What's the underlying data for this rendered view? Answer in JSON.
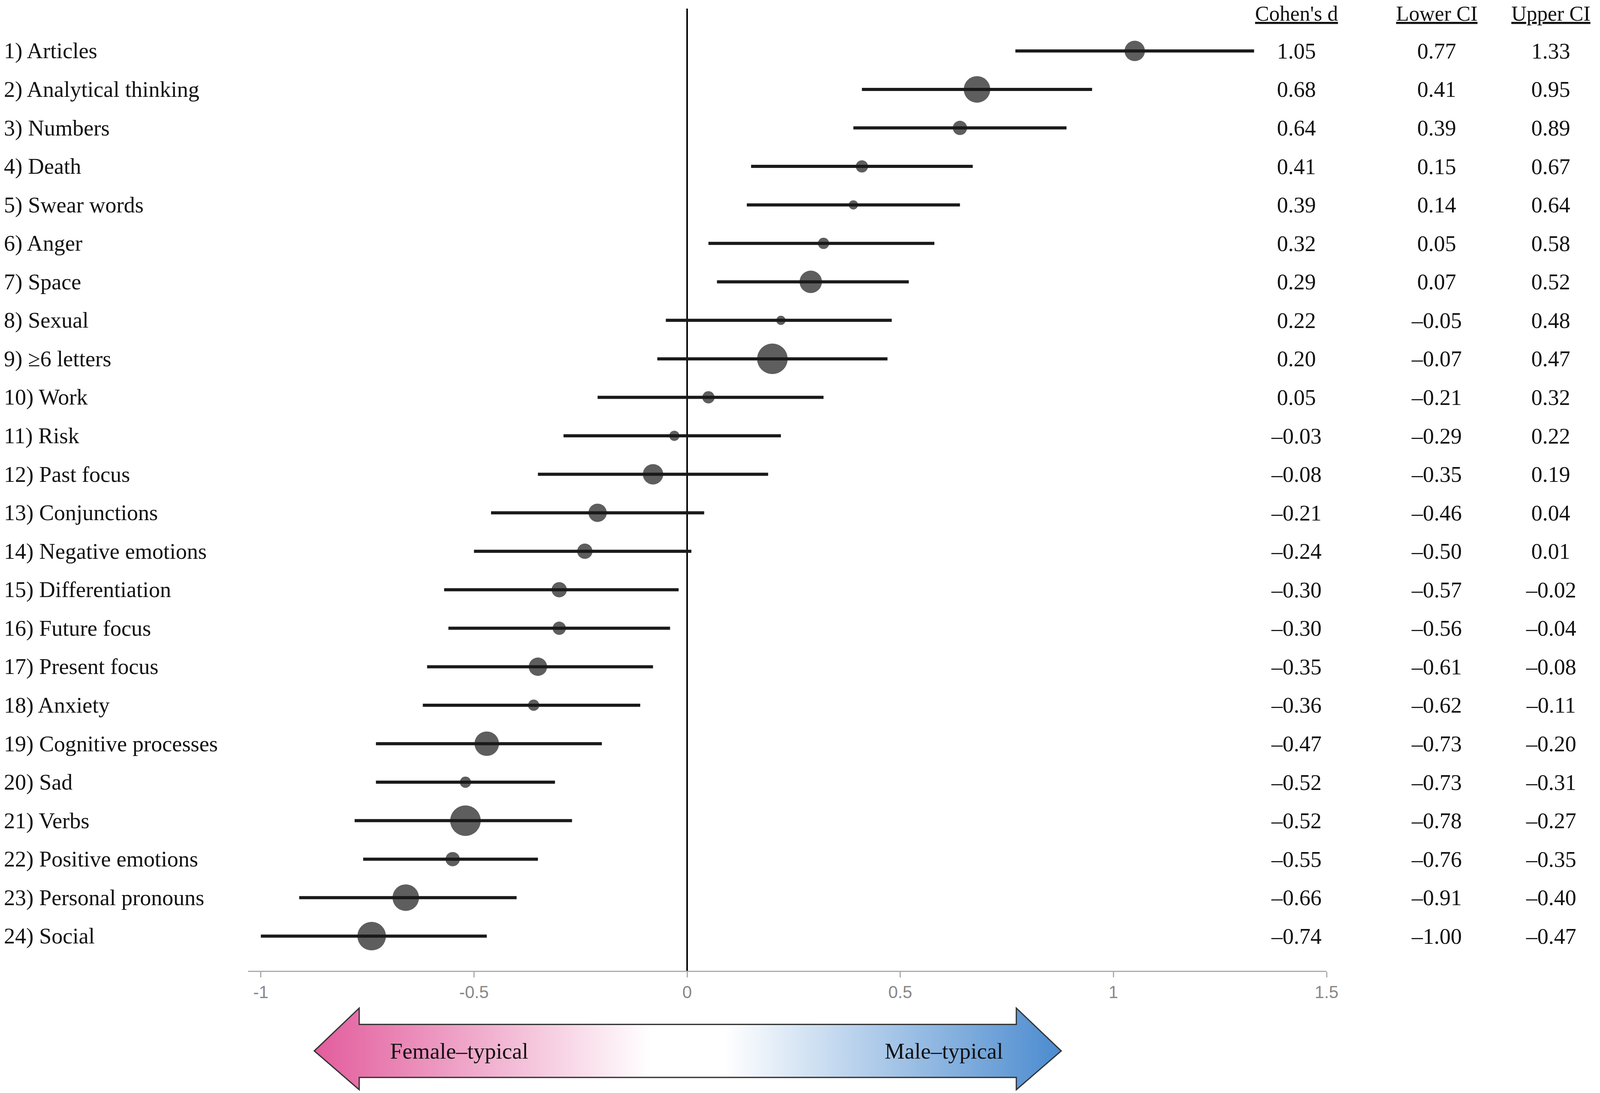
{
  "chart_data": {
    "type": "forest",
    "categories": [
      "1) Articles",
      "2) Analytical thinking",
      "3) Numbers",
      "4) Death",
      "5) Swear words",
      "6) Anger",
      "7) Space",
      "8) Sexual",
      "9) ≥6 letters",
      "10) Work",
      "11) Risk",
      "12) Past focus",
      "13) Conjunctions",
      "14) Negative emotions",
      "15) Differentiation",
      "16) Future focus",
      "17) Present focus",
      "18) Anxiety",
      "19) Cognitive processes",
      "20) Sad",
      "21) Verbs",
      "22) Positive emotions",
      "23) Personal pronouns",
      "24) Social"
    ],
    "values": [
      1.05,
      0.68,
      0.64,
      0.41,
      0.39,
      0.32,
      0.29,
      0.22,
      0.2,
      0.05,
      -0.03,
      -0.08,
      -0.21,
      -0.24,
      -0.3,
      -0.3,
      -0.35,
      -0.36,
      -0.47,
      -0.52,
      -0.52,
      -0.55,
      -0.66,
      -0.74
    ],
    "value_labels": [
      "1.05",
      "0.68",
      "0.64",
      "0.41",
      "0.39",
      "0.32",
      "0.29",
      "0.22",
      "0.20",
      "0.05",
      "–0.03",
      "–0.08",
      "–0.21",
      "–0.24",
      "–0.30",
      "–0.30",
      "–0.35",
      "–0.36",
      "–0.47",
      "–0.52",
      "–0.52",
      "–0.55",
      "–0.66",
      "–0.74"
    ],
    "lower": [
      0.77,
      0.41,
      0.39,
      0.15,
      0.14,
      0.05,
      0.07,
      -0.05,
      -0.07,
      -0.21,
      -0.29,
      -0.35,
      -0.46,
      -0.5,
      -0.57,
      -0.56,
      -0.61,
      -0.62,
      -0.73,
      -0.73,
      -0.78,
      -0.76,
      -0.91,
      -1.0
    ],
    "lower_labels": [
      "0.77",
      "0.41",
      "0.39",
      "0.15",
      "0.14",
      "0.05",
      "0.07",
      "–0.05",
      "–0.07",
      "–0.21",
      "–0.29",
      "–0.35",
      "–0.46",
      "–0.50",
      "–0.57",
      "–0.56",
      "–0.61",
      "–0.62",
      "–0.73",
      "–0.73",
      "–0.78",
      "–0.76",
      "–0.91",
      "–1.00"
    ],
    "upper": [
      1.33,
      0.95,
      0.89,
      0.67,
      0.64,
      0.58,
      0.52,
      0.48,
      0.47,
      0.32,
      0.22,
      0.19,
      0.04,
      0.01,
      -0.02,
      -0.04,
      -0.08,
      -0.11,
      -0.2,
      -0.31,
      -0.27,
      -0.35,
      -0.4,
      -0.47
    ],
    "upper_labels": [
      "1.33",
      "0.95",
      "0.89",
      "0.67",
      "0.64",
      "0.58",
      "0.52",
      "0.48",
      "0.47",
      "0.32",
      "0.22",
      "0.19",
      "0.04",
      "0.01",
      "–0.02",
      "–0.04",
      "–0.08",
      "–0.11",
      "–0.20",
      "–0.31",
      "–0.27",
      "–0.35",
      "–0.40",
      "–0.47"
    ],
    "weights": [
      20,
      26,
      14,
      12,
      9,
      11,
      22,
      9,
      30,
      12,
      10,
      20,
      18,
      15,
      15,
      13,
      18,
      11,
      24,
      11,
      30,
      14,
      26,
      28
    ],
    "columns": [
      "Cohen's d",
      "Lower CI",
      "Upper CI"
    ],
    "annotations": [
      "Female–typical",
      "Male–typical"
    ],
    "xlim": [
      -1.03,
      1.5
    ],
    "xticks": [
      -1,
      -0.5,
      0,
      0.5,
      1,
      1.5
    ],
    "color": "#1a1a1a",
    "grid": false,
    "data_labels": true
  }
}
